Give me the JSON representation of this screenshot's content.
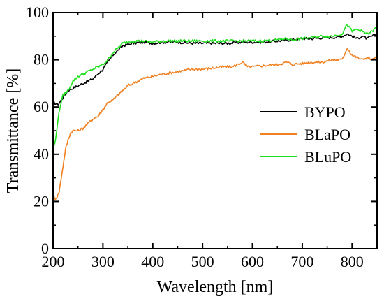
{
  "chart_data": {
    "type": "line",
    "title": "",
    "xlabel": "Wavelength [nm]",
    "ylabel": "Transmittance [%]",
    "xlim": [
      200,
      850
    ],
    "ylim": [
      0,
      100
    ],
    "x_ticks": [
      200,
      300,
      400,
      500,
      600,
      700,
      800
    ],
    "y_ticks": [
      0,
      20,
      40,
      60,
      80,
      100
    ],
    "grid": false,
    "legend_position": "right-middle",
    "series": [
      {
        "name": "BYPO",
        "color": "#000000",
        "points": [
          [
            200,
            62
          ],
          [
            210,
            61
          ],
          [
            220,
            64
          ],
          [
            230,
            67
          ],
          [
            240,
            68
          ],
          [
            250,
            69
          ],
          [
            260,
            70
          ],
          [
            270,
            71
          ],
          [
            280,
            72
          ],
          [
            290,
            74
          ],
          [
            300,
            76
          ],
          [
            310,
            79
          ],
          [
            320,
            82
          ],
          [
            330,
            84
          ],
          [
            340,
            86
          ],
          [
            350,
            86.5
          ],
          [
            360,
            87
          ],
          [
            380,
            87.5
          ],
          [
            400,
            87
          ],
          [
            420,
            87.5
          ],
          [
            450,
            87.5
          ],
          [
            480,
            87
          ],
          [
            500,
            87
          ],
          [
            520,
            87
          ],
          [
            550,
            87
          ],
          [
            580,
            87.5
          ],
          [
            600,
            87.5
          ],
          [
            620,
            87.5
          ],
          [
            650,
            88
          ],
          [
            680,
            88.5
          ],
          [
            700,
            89
          ],
          [
            720,
            89
          ],
          [
            750,
            89.5
          ],
          [
            770,
            89.5
          ],
          [
            780,
            90
          ],
          [
            790,
            91
          ],
          [
            800,
            90
          ],
          [
            810,
            89
          ],
          [
            820,
            90
          ],
          [
            830,
            89
          ],
          [
            840,
            90
          ],
          [
            850,
            91
          ]
        ]
      },
      {
        "name": "BLaPO",
        "color": "#f08020",
        "points": [
          [
            200,
            24
          ],
          [
            203,
            21
          ],
          [
            208,
            22
          ],
          [
            212,
            24
          ],
          [
            215,
            28
          ],
          [
            220,
            35
          ],
          [
            225,
            42
          ],
          [
            230,
            46
          ],
          [
            235,
            49
          ],
          [
            240,
            50
          ],
          [
            250,
            50
          ],
          [
            260,
            51
          ],
          [
            270,
            53
          ],
          [
            280,
            55
          ],
          [
            290,
            56
          ],
          [
            300,
            59
          ],
          [
            310,
            62
          ],
          [
            320,
            63
          ],
          [
            330,
            65
          ],
          [
            340,
            67
          ],
          [
            350,
            69
          ],
          [
            360,
            70
          ],
          [
            370,
            71
          ],
          [
            380,
            72
          ],
          [
            400,
            73
          ],
          [
            420,
            74
          ],
          [
            450,
            75
          ],
          [
            480,
            76
          ],
          [
            500,
            76
          ],
          [
            520,
            76.5
          ],
          [
            540,
            77
          ],
          [
            560,
            77
          ],
          [
            570,
            78
          ],
          [
            580,
            79
          ],
          [
            590,
            77
          ],
          [
            600,
            77
          ],
          [
            620,
            77.5
          ],
          [
            650,
            78
          ],
          [
            670,
            79
          ],
          [
            680,
            78
          ],
          [
            700,
            78.5
          ],
          [
            720,
            79
          ],
          [
            740,
            79
          ],
          [
            760,
            80
          ],
          [
            780,
            80
          ],
          [
            790,
            85
          ],
          [
            800,
            82
          ],
          [
            810,
            81
          ],
          [
            820,
            80
          ],
          [
            830,
            81
          ],
          [
            840,
            80
          ],
          [
            850,
            81
          ]
        ]
      },
      {
        "name": "BLuPO",
        "color": "#20e020",
        "points": [
          [
            200,
            42
          ],
          [
            205,
            46
          ],
          [
            210,
            55
          ],
          [
            215,
            61
          ],
          [
            220,
            65
          ],
          [
            230,
            67
          ],
          [
            240,
            71
          ],
          [
            250,
            73
          ],
          [
            260,
            74
          ],
          [
            270,
            75
          ],
          [
            280,
            76
          ],
          [
            290,
            77
          ],
          [
            300,
            78
          ],
          [
            310,
            80
          ],
          [
            320,
            83
          ],
          [
            330,
            85
          ],
          [
            340,
            87
          ],
          [
            350,
            87.5
          ],
          [
            360,
            88
          ],
          [
            380,
            88
          ],
          [
            400,
            87.5
          ],
          [
            420,
            88
          ],
          [
            450,
            88
          ],
          [
            470,
            88
          ],
          [
            480,
            88
          ],
          [
            500,
            88
          ],
          [
            520,
            88
          ],
          [
            540,
            88
          ],
          [
            560,
            88
          ],
          [
            580,
            88
          ],
          [
            600,
            88
          ],
          [
            620,
            88
          ],
          [
            650,
            88.5
          ],
          [
            670,
            89
          ],
          [
            680,
            88.5
          ],
          [
            700,
            89
          ],
          [
            720,
            89.5
          ],
          [
            740,
            90
          ],
          [
            760,
            90
          ],
          [
            780,
            91
          ],
          [
            790,
            95
          ],
          [
            800,
            92
          ],
          [
            810,
            93
          ],
          [
            820,
            92
          ],
          [
            830,
            91
          ],
          [
            840,
            92
          ],
          [
            850,
            94
          ]
        ]
      }
    ]
  }
}
